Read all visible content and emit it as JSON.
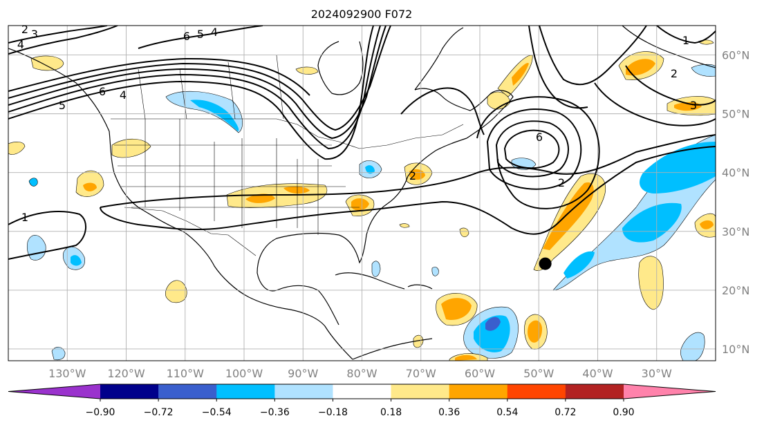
{
  "title": "2024092900 F072",
  "map": {
    "projection": "cylindrical",
    "lon_range": [
      -140,
      -20
    ],
    "lat_range": [
      8,
      65
    ],
    "grid": true,
    "lon_ticks": [
      {
        "value": -130,
        "label": "130°W"
      },
      {
        "value": -120,
        "label": "120°W"
      },
      {
        "value": -110,
        "label": "110°W"
      },
      {
        "value": -100,
        "label": "100°W"
      },
      {
        "value": -90,
        "label": "90°W"
      },
      {
        "value": -80,
        "label": "80°W"
      },
      {
        "value": -70,
        "label": "70°W"
      },
      {
        "value": -60,
        "label": "60°W"
      },
      {
        "value": -50,
        "label": "50°W"
      },
      {
        "value": -40,
        "label": "40°W"
      },
      {
        "value": -30,
        "label": "30°W"
      }
    ],
    "lat_ticks": [
      {
        "value": 60,
        "label": "60°N"
      },
      {
        "value": 50,
        "label": "50°N"
      },
      {
        "value": 40,
        "label": "40°N"
      },
      {
        "value": 30,
        "label": "30°N"
      },
      {
        "value": 20,
        "label": "20°N"
      },
      {
        "value": 10,
        "label": "10°N"
      }
    ],
    "contour_labels": [
      "1",
      "2",
      "3",
      "4",
      "5",
      "6"
    ],
    "storm_marker": {
      "lon": -48.9,
      "lat": 24.5,
      "color": "#000000"
    }
  },
  "colorbar": {
    "levels": [
      "−0.90",
      "−0.72",
      "−0.54",
      "−0.36",
      "−0.18",
      "0.18",
      "0.36",
      "0.54",
      "0.72",
      "0.90"
    ],
    "colors": [
      "#9a32cd",
      "#00008b",
      "#3a5fcd",
      "#00bfff",
      "#b0e2ff",
      "#ffffff",
      "#ffe98a",
      "#ffa500",
      "#ff4500",
      "#b22222",
      "#ff82ab"
    ],
    "extend": "both"
  }
}
